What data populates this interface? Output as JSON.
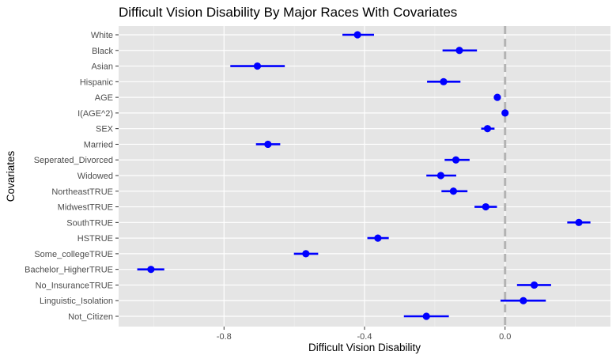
{
  "chart_data": {
    "type": "scatter",
    "title": "Difficult Vision Disability By Major Races With Covariates",
    "xlabel": "Difficult Vision Disability",
    "ylabel": "Covariates",
    "xlim": [
      -1.1,
      0.3
    ],
    "xticks": [
      -0.8,
      -0.4,
      0.0
    ],
    "xtick_labels": [
      "-0.8",
      "-0.4",
      "0.0"
    ],
    "reference_line": {
      "x": 0,
      "style": "dashed",
      "color": "#b3b3b3"
    },
    "grid": true,
    "panel_background": "#e5e5e5",
    "point_color": "#0000ff",
    "categories": [
      "White",
      "Black",
      "Asian",
      "Hispanic",
      "AGE",
      "I(AGE^2)",
      "SEX",
      "Married",
      "Seperated_Divorced",
      "Widowed",
      "NortheastTRUE",
      "MidwestTRUE",
      "SouthTRUE",
      "HSTRUE",
      "Some_collegeTRUE",
      "Bachelor_HigherTRUE",
      "No_InsuranceTRUE",
      "Linguistic_Isolation",
      "Not_Citizen"
    ],
    "estimates": [
      -0.42,
      -0.13,
      -0.705,
      -0.175,
      -0.022,
      0.0,
      -0.05,
      -0.675,
      -0.14,
      -0.183,
      -0.147,
      -0.055,
      0.21,
      -0.362,
      -0.567,
      -1.008,
      0.083,
      0.052,
      -0.224
    ],
    "lower": [
      -0.463,
      -0.178,
      -0.782,
      -0.222,
      -0.022,
      0.0,
      -0.068,
      -0.709,
      -0.172,
      -0.224,
      -0.181,
      -0.087,
      0.177,
      -0.392,
      -0.601,
      -1.047,
      0.034,
      -0.013,
      -0.288
    ],
    "upper": [
      -0.373,
      -0.08,
      -0.627,
      -0.127,
      -0.022,
      0.0,
      -0.03,
      -0.64,
      -0.101,
      -0.139,
      -0.107,
      -0.023,
      0.243,
      -0.331,
      -0.532,
      -0.97,
      0.131,
      0.116,
      -0.16
    ]
  }
}
